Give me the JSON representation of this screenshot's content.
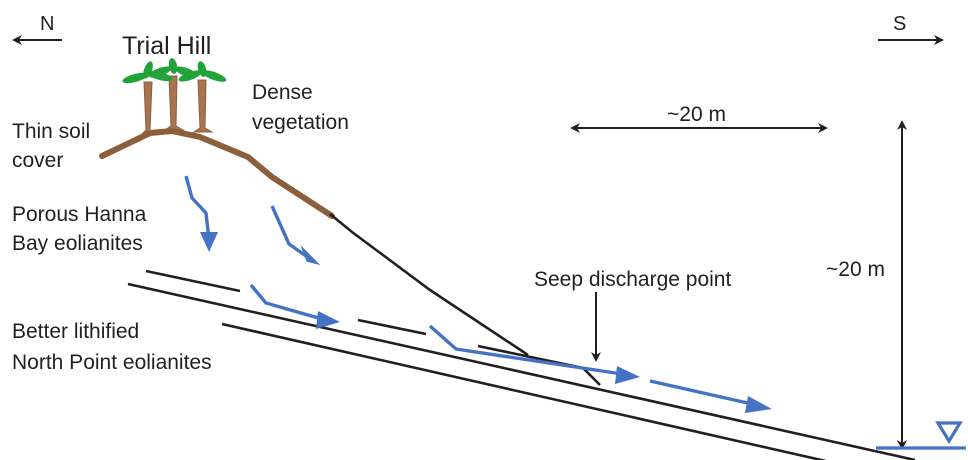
{
  "title": "Trial Hill",
  "north_label": "N",
  "south_label": "S",
  "labels": {
    "thin_soil_line1": "Thin soil",
    "thin_soil_line2": "cover",
    "dense_veg_line1": "Dense",
    "dense_veg_line2": "vegetation",
    "porous_line1": "Porous Hanna",
    "porous_line2": "Bay eolianites",
    "lithified_line1": "Better lithified",
    "lithified_line2": "North Point eolianites",
    "seep": "Seep discharge point"
  },
  "scale": {
    "horizontal": "~20 m",
    "vertical": "~20 m"
  },
  "colors": {
    "flow": "#4472c4",
    "soil": "#8b5e3c",
    "trunk": "#a8744f",
    "leaves": "#22a339",
    "line": "#231f20"
  },
  "icons": {
    "water_table": "inverted-triangle-water-table-icon",
    "vegetation": "palm-trees-icon"
  }
}
